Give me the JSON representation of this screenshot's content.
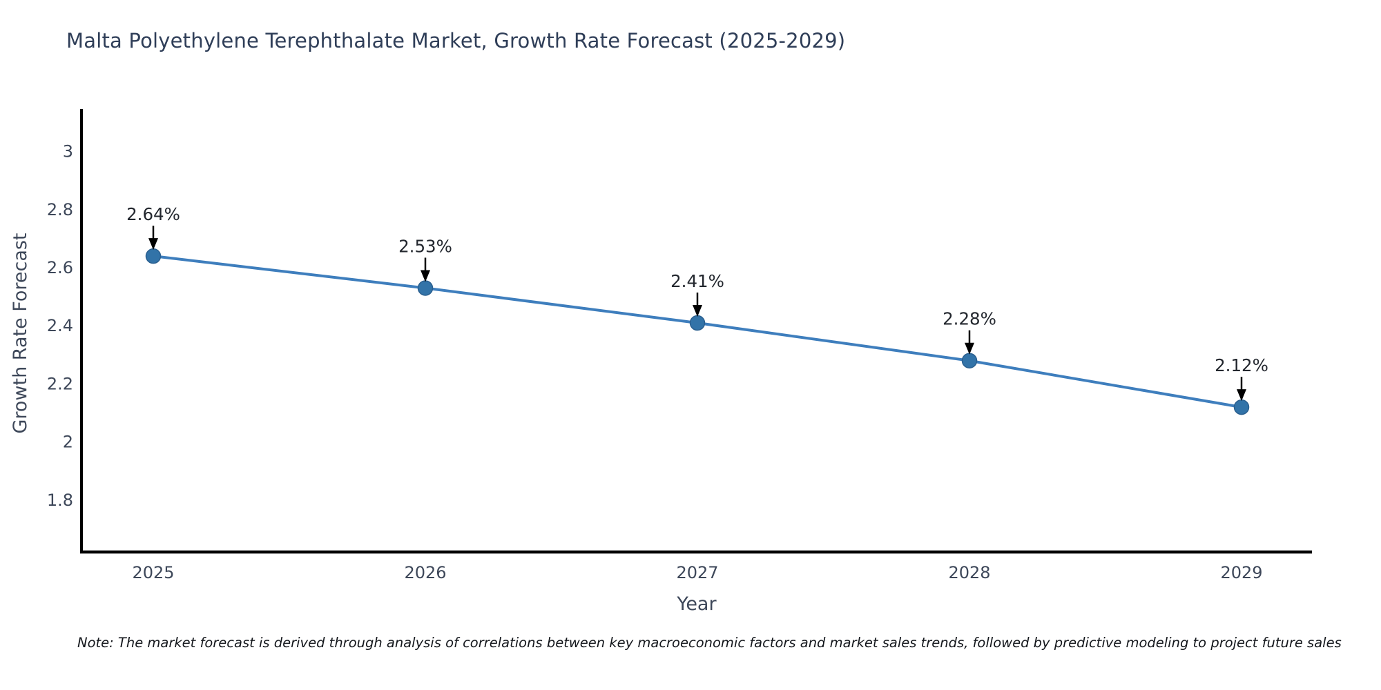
{
  "chart_data": {
    "type": "line",
    "title": "Malta Polyethylene Terephthalate Market, Growth Rate Forecast (2025-2029)",
    "xlabel": "Year",
    "ylabel": "Growth Rate Forecast",
    "categories": [
      "2025",
      "2026",
      "2027",
      "2028",
      "2029"
    ],
    "series": [
      {
        "name": "Growth Rate Forecast (%)",
        "values": [
          2.64,
          2.53,
          2.41,
          2.28,
          2.12
        ],
        "point_labels": [
          "2.64%",
          "2.53%",
          "2.41%",
          "2.28%",
          "2.12%"
        ]
      }
    ],
    "yticks": [
      3,
      2.8,
      2.6,
      2.4,
      2.2,
      2,
      1.8
    ],
    "ytick_labels": [
      "3",
      "2.8",
      "2.6",
      "2.4",
      "2.2",
      "2",
      "1.8"
    ],
    "ylim": [
      1.62,
      3.14
    ],
    "grid": false,
    "legend_position": "none",
    "colors": {
      "line": "#3e7ebd",
      "marker_fill": "#3273a8",
      "marker_edge": "#2a5f8f",
      "axis_spine": "#000000",
      "tick_text": "#3d4759",
      "title_text": "#2f3e58",
      "annotation_text": "#23272e",
      "arrow": "#000000"
    }
  },
  "note": {
    "text": "Note: The market forecast is derived through analysis of correlations between key macroeconomic factors and market sales trends, followed by predictive modeling to project future sales"
  }
}
